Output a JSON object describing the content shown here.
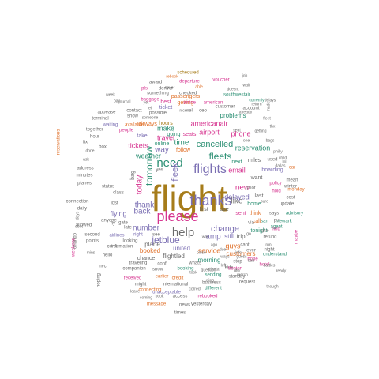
{
  "wordcloud": {
    "words": [
      {
        "text": "flight",
        "color": "#a67c1a"
      },
      {
        "text": "please",
        "color": "#d6338f"
      },
      {
        "text": "thanks",
        "color": "#7b6fb3"
      },
      {
        "text": "flights",
        "color": "#7b6fb3"
      },
      {
        "text": "need",
        "color": "#2b8f73"
      },
      {
        "text": "help",
        "color": "#6b6b6b"
      },
      {
        "text": "jetblue",
        "color": "#7b6fb3"
      },
      {
        "text": "fleek",
        "color": "#7b6fb3"
      },
      {
        "text": "fleets",
        "color": "#2b8f73"
      },
      {
        "text": "cancelled",
        "color": "#2b8f73"
      },
      {
        "text": "tomorrow",
        "color": "#2b8f73"
      },
      {
        "text": "way",
        "color": "#7b6fb3"
      },
      {
        "text": "time",
        "color": "#2b8f73"
      },
      {
        "text": "change",
        "color": "#7b6fb3"
      },
      {
        "text": "new",
        "color": "#d6338f"
      },
      {
        "text": "like",
        "color": "#6b6b6b"
      },
      {
        "text": "amp",
        "color": "#7b6fb3"
      },
      {
        "text": "today",
        "color": "#d6338f"
      },
      {
        "text": "back",
        "color": "#7b6fb3"
      },
      {
        "text": "number",
        "color": "#7b6fb3"
      },
      {
        "text": "thank",
        "color": "#7b6fb3"
      },
      {
        "text": "flying",
        "color": "#7b6fb3"
      },
      {
        "text": "email",
        "color": "#d6338f"
      },
      {
        "text": "phone",
        "color": "#d6338f"
      },
      {
        "text": "airport",
        "color": "#d6338f"
      },
      {
        "text": "make",
        "color": "#2b8f73"
      },
      {
        "text": "delayed",
        "color": "#7b6fb3"
      },
      {
        "text": "weather",
        "color": "#2b8f73"
      },
      {
        "text": "tickets",
        "color": "#d6338f"
      },
      {
        "text": "travel",
        "color": "#d6338f"
      },
      {
        "text": "customers",
        "color": "#e0722c"
      },
      {
        "text": "reservation",
        "color": "#2b8f73"
      },
      {
        "text": "americanair",
        "color": "#d6338f"
      },
      {
        "text": "service",
        "color": "#e0722c"
      },
      {
        "text": "booked",
        "color": "#e0722c"
      },
      {
        "text": "still",
        "color": "#7b6fb3"
      },
      {
        "text": "trip",
        "color": "#6b6b6b"
      },
      {
        "text": "guys",
        "color": "#e0722c"
      },
      {
        "text": "united",
        "color": "#7b6fb3"
      },
      {
        "text": "morning",
        "color": "#2b8f73"
      },
      {
        "text": "flightled",
        "color": "#6b6b6b"
      },
      {
        "text": "plane",
        "color": "#6b6b6b"
      },
      {
        "text": "hours",
        "color": "#a67c1a"
      },
      {
        "text": "seats",
        "color": "#d6338f"
      },
      {
        "text": "going",
        "color": "#2b8f73"
      },
      {
        "text": "take",
        "color": "#7b6fb3"
      },
      {
        "text": "airways",
        "color": "#e0722c"
      },
      {
        "text": "online",
        "color": "#2b8f73"
      },
      {
        "text": "follow",
        "color": "#e0722c"
      },
      {
        "text": "problems",
        "color": "#2b8f73"
      },
      {
        "text": "passengers",
        "color": "#e0722c"
      },
      {
        "text": "ticket",
        "color": "#7b6fb3"
      },
      {
        "text": "getting",
        "color": "#e0722c"
      },
      {
        "text": "best",
        "color": "#d6338f"
      },
      {
        "text": "boarding",
        "color": "#7b6fb3"
      },
      {
        "text": "miles",
        "color": "#6b6b6b"
      },
      {
        "text": "next",
        "color": "#2b8f73"
      },
      {
        "text": "want",
        "color": "#6b6b6b"
      },
      {
        "text": "call",
        "color": "#e0722c"
      },
      {
        "text": "first",
        "color": "#6b6b6b"
      },
      {
        "text": "use",
        "color": "#6b6b6b"
      },
      {
        "text": "sent",
        "color": "#d6338f"
      },
      {
        "text": "think",
        "color": "#e0722c"
      },
      {
        "text": "home",
        "color": "#2b8f73"
      },
      {
        "text": "tonight",
        "color": "#2b8f73"
      },
      {
        "text": "last",
        "color": "#6b6b6b"
      },
      {
        "text": "hold",
        "color": "#d6338f"
      },
      {
        "text": "pilot",
        "color": "#6b6b6b"
      },
      {
        "text": "chance",
        "color": "#6b6b6b"
      },
      {
        "text": "right",
        "color": "#7b6fb3"
      },
      {
        "text": "see",
        "color": "#6b6b6b"
      },
      {
        "text": "sending",
        "color": "#2b8f73"
      },
      {
        "text": "booking",
        "color": "#2b8f73"
      },
      {
        "text": "whats",
        "color": "#6b6b6b"
      },
      {
        "text": "kids",
        "color": "#6b6b6b"
      },
      {
        "text": "received",
        "color": "#d6338f"
      },
      {
        "text": "earlier",
        "color": "#e0722c"
      },
      {
        "text": "credit",
        "color": "#e0722c"
      },
      {
        "text": "snow",
        "color": "#6b6b6b"
      },
      {
        "text": "companion",
        "color": "#6b6b6b"
      },
      {
        "text": "looking",
        "color": "#6b6b6b"
      },
      {
        "text": "traveling",
        "color": "#6b6b6b"
      },
      {
        "text": "conf",
        "color": "#6b6b6b"
      },
      {
        "text": "airline",
        "color": "#d6338f"
      },
      {
        "text": "american",
        "color": "#d6338f"
      },
      {
        "text": "waiting",
        "color": "#7b6fb3"
      },
      {
        "text": "available",
        "color": "#e0722c"
      },
      {
        "text": "possible",
        "color": "#6b6b6b"
      },
      {
        "text": "well",
        "color": "#6b6b6b"
      },
      {
        "text": "ceo",
        "color": "#6b6b6b"
      },
      {
        "text": "checked",
        "color": "#6b6b6b"
      },
      {
        "text": "something",
        "color": "#6b6b6b"
      },
      {
        "text": "denver",
        "color": "#6b6b6b"
      },
      {
        "text": "pls",
        "color": "#d6338f"
      },
      {
        "text": "baggage",
        "color": "#d6338f"
      },
      {
        "text": "journal",
        "color": "#6b6b6b"
      },
      {
        "text": "contact",
        "color": "#6b6b6b"
      },
      {
        "text": "appease",
        "color": "#6b6b6b"
      },
      {
        "text": "people",
        "color": "#d6338f"
      },
      {
        "text": "show",
        "color": "#6b6b6b"
      },
      {
        "text": "hour",
        "color": "#6b6b6b"
      },
      {
        "text": "customer",
        "color": "#6b6b6b"
      },
      {
        "text": "account",
        "color": "#6b6b6b"
      },
      {
        "text": "already",
        "color": "#6b6b6b"
      },
      {
        "text": "scheduled",
        "color": "#a67c1a"
      },
      {
        "text": "rebook",
        "color": "#e0722c"
      },
      {
        "text": "voucher",
        "color": "#d6338f"
      },
      {
        "text": "departure",
        "color": "#d6338f"
      },
      {
        "text": "award",
        "color": "#6b6b6b"
      },
      {
        "text": "never",
        "color": "#6b6b6b"
      },
      {
        "text": "doesnt",
        "color": "#6b6b6b"
      },
      {
        "text": "wait",
        "color": "#6b6b6b"
      },
      {
        "text": "southwestair",
        "color": "#2b8f73"
      },
      {
        "text": "currently",
        "color": "#2b8f73"
      },
      {
        "text": "delays",
        "color": "#6b6b6b"
      },
      {
        "text": "return",
        "color": "#6b6b6b"
      },
      {
        "text": "times",
        "color": "#6b6b6b"
      },
      {
        "text": "yesterday",
        "color": "#6b6b6b"
      },
      {
        "text": "news",
        "color": "#6b6b6b"
      },
      {
        "text": "rebooked",
        "color": "#d6338f"
      },
      {
        "text": "different",
        "color": "#2b8f73"
      },
      {
        "text": "standby",
        "color": "#6b6b6b"
      },
      {
        "text": "access",
        "color": "#6b6b6b"
      },
      {
        "text": "message",
        "color": "#e0722c"
      },
      {
        "text": "connecting",
        "color": "#e0722c"
      },
      {
        "text": "unacceptable",
        "color": "#7b6fb3"
      },
      {
        "text": "business",
        "color": "#6b6b6b"
      },
      {
        "text": "request",
        "color": "#6b6b6b"
      },
      {
        "text": "boston",
        "color": "#d6338f"
      },
      {
        "text": "understand",
        "color": "#2b8f73"
      },
      {
        "text": "night",
        "color": "#6b6b6b"
      },
      {
        "text": "cant",
        "color": "#6b6b6b"
      },
      {
        "text": "refund",
        "color": "#6b6b6b"
      },
      {
        "text": "says",
        "color": "#6b6b6b"
      },
      {
        "text": "update",
        "color": "#6b6b6b"
      },
      {
        "text": "advisory",
        "color": "#2b8f73"
      },
      {
        "text": "policy",
        "color": "#d6338f"
      },
      {
        "text": "winter",
        "color": "#6b6b6b"
      },
      {
        "text": "find",
        "color": "#d6338f"
      },
      {
        "text": "put",
        "color": "#6b6b6b"
      },
      {
        "text": "san",
        "color": "#2b8f73"
      },
      {
        "text": "newark",
        "color": "#2b8f73"
      },
      {
        "text": "agent",
        "color": "#2b8f73"
      },
      {
        "text": "used",
        "color": "#6b6b6b"
      },
      {
        "text": "car",
        "color": "#e0722c"
      },
      {
        "text": "mean",
        "color": "#6b6b6b"
      },
      {
        "text": "monday",
        "color": "#e0722c"
      },
      {
        "text": "cost",
        "color": "#6b6b6b"
      },
      {
        "text": "though",
        "color": "#6b6b6b"
      },
      {
        "text": "maybe",
        "color": "#d6338f"
      },
      {
        "text": "hope",
        "color": "#d6338f"
      },
      {
        "text": "hotel",
        "color": "#d6338f"
      },
      {
        "text": "stop",
        "color": "#6b6b6b"
      },
      {
        "text": "airlines",
        "color": "#7b6fb3"
      },
      {
        "text": "terminal",
        "color": "#6b6b6b"
      },
      {
        "text": "together",
        "color": "#6b6b6b"
      },
      {
        "text": "fix",
        "color": "#6b6b6b"
      },
      {
        "text": "box",
        "color": "#6b6b6b"
      },
      {
        "text": "status",
        "color": "#6b6b6b"
      },
      {
        "text": "class",
        "color": "#6b6b6b"
      },
      {
        "text": "confirmation",
        "color": "#6b6b6b"
      },
      {
        "text": "second",
        "color": "#6b6b6b"
      },
      {
        "text": "points",
        "color": "#6b6b6b"
      },
      {
        "text": "address",
        "color": "#6b6b6b"
      },
      {
        "text": "minutes",
        "color": "#6b6b6b"
      },
      {
        "text": "planes",
        "color": "#6b6b6b"
      },
      {
        "text": "connection",
        "color": "#6b6b6b"
      },
      {
        "text": "daily",
        "color": "#6b6b6b"
      },
      {
        "text": "allowed",
        "color": "#6b6b6b"
      },
      {
        "text": "reservations",
        "color": "#e0722c"
      },
      {
        "text": "orlando",
        "color": "#6b6b6b"
      },
      {
        "text": "hoping",
        "color": "#6b6b6b"
      },
      {
        "text": "nyc",
        "color": "#6b6b6b"
      },
      {
        "text": "hello",
        "color": "#6b6b6b"
      },
      {
        "text": "weekend",
        "color": "#d6338f"
      },
      {
        "text": "late",
        "color": "#6b6b6b"
      },
      {
        "text": "fly",
        "color": "#6b6b6b"
      },
      {
        "text": "anyone",
        "color": "#6b6b6b"
      },
      {
        "text": "lost",
        "color": "#6b6b6b"
      },
      {
        "text": "bag",
        "color": "#6b6b6b"
      },
      {
        "text": "week",
        "color": "#6b6b6b"
      },
      {
        "text": "pay",
        "color": "#6b6b6b"
      },
      {
        "text": "tell",
        "color": "#6b6b6b"
      },
      {
        "text": "able",
        "color": "#e0722c"
      },
      {
        "text": "child",
        "color": "#6b6b6b"
      },
      {
        "text": "philly",
        "color": "#6b6b6b"
      },
      {
        "text": "ever",
        "color": "#6b6b6b"
      },
      {
        "text": "info",
        "color": "#6b6b6b"
      },
      {
        "text": "bad",
        "color": "#6b6b6b"
      },
      {
        "text": "gate",
        "color": "#6b6b6b"
      },
      {
        "text": "via",
        "color": "#6b6b6b"
      },
      {
        "text": "give",
        "color": "#6b6b6b"
      },
      {
        "text": "go",
        "color": "#6b6b6b"
      },
      {
        "text": "dfw",
        "color": "#6b6b6b"
      },
      {
        "text": "yes",
        "color": "#6b6b6b"
      },
      {
        "text": "left",
        "color": "#6b6b6b"
      },
      {
        "text": "one",
        "color": "#6b6b6b"
      },
      {
        "text": "atlanta",
        "color": "#6b6b6b"
      },
      {
        "text": "due",
        "color": "#6b6b6b"
      },
      {
        "text": "might",
        "color": "#6b6b6b"
      },
      {
        "text": "coming",
        "color": "#6b6b6b"
      },
      {
        "text": "correct",
        "color": "#6b6b6b"
      },
      {
        "text": "international",
        "color": "#6b6b6b"
      },
      {
        "text": "took",
        "color": "#6b6b6b"
      },
      {
        "text": "ways",
        "color": "#6b6b6b"
      },
      {
        "text": "question",
        "color": "#6b6b6b"
      },
      {
        "text": "using",
        "color": "#6b6b6b"
      },
      {
        "text": "ago",
        "color": "#6b6b6b"
      },
      {
        "text": "march",
        "color": "#6b6b6b"
      },
      {
        "text": "battles",
        "color": "#6b6b6b"
      },
      {
        "text": "ready",
        "color": "#6b6b6b"
      },
      {
        "text": "days",
        "color": "#6b6b6b"
      },
      {
        "text": "ask",
        "color": "#6b6b6b"
      },
      {
        "text": "done",
        "color": "#6b6b6b"
      },
      {
        "text": "dont",
        "color": "#6b6b6b"
      },
      {
        "text": "leave",
        "color": "#6b6b6b"
      },
      {
        "text": "book",
        "color": "#6b6b6b"
      },
      {
        "text": "free",
        "color": "#6b6b6b"
      },
      {
        "text": "made",
        "color": "#6b6b6b"
      },
      {
        "text": "getting",
        "color": "#6b6b6b"
      },
      {
        "text": "mins",
        "color": "#6b6b6b"
      },
      {
        "text": "sure",
        "color": "#6b6b6b"
      },
      {
        "text": "dallas",
        "color": "#6b6b6b"
      },
      {
        "text": "yet",
        "color": "#6b6b6b"
      },
      {
        "text": "lol",
        "color": "#6b6b6b"
      },
      {
        "text": "guess",
        "color": "#6b6b6b"
      },
      {
        "text": "run",
        "color": "#6b6b6b"
      },
      {
        "text": "seat",
        "color": "#6b6b6b"
      },
      {
        "text": "bags",
        "color": "#6b6b6b"
      },
      {
        "text": "someone",
        "color": "#6b6b6b"
      },
      {
        "text": "job",
        "color": "#6b6b6b"
      },
      {
        "text": "wall",
        "color": "#6b6b6b"
      },
      {
        "text": "close",
        "color": "#6b6b6b"
      },
      {
        "text": "fleet",
        "color": "#6b6b6b"
      },
      {
        "text": "nice",
        "color": "#6b6b6b"
      },
      {
        "text": "thx",
        "color": "#6b6b6b"
      }
    ]
  }
}
